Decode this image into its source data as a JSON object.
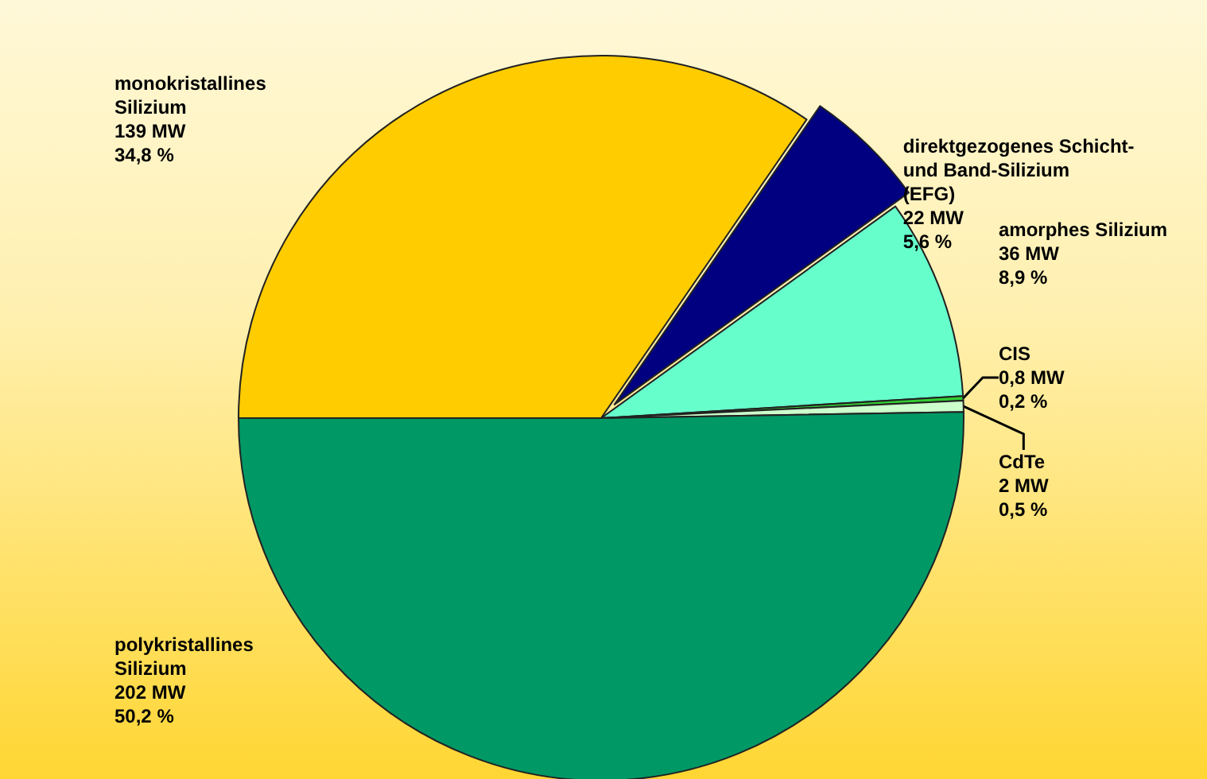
{
  "chart_data": {
    "type": "pie",
    "categories": [
      "monokristallines\nSilizium",
      "direktgezogenes Schicht-\nund Band-Silizium\n(EFG)",
      "amorphes Silizium",
      "CIS",
      "CdTe",
      "polykristallines\nSilizium"
    ],
    "values": [
      139,
      22,
      36,
      0.8,
      2,
      202
    ],
    "value_labels": [
      "139 MW\n34,8 %",
      "22 MW\n5,6 %",
      "36 MW\n8,9 %",
      "0,8 MW\n0,2 %",
      "2 MW\n0,5 %",
      "202 MW\n50,2 %"
    ],
    "colors": [
      "#ffcc00",
      "#000080",
      "#66ffcc",
      "#33cc33",
      "#ccffcc",
      "#009966"
    ]
  }
}
